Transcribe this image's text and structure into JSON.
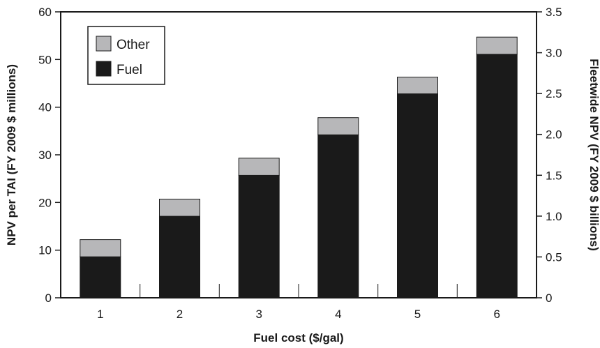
{
  "chart_data": {
    "type": "bar",
    "stacked": true,
    "categories": [
      "1",
      "2",
      "3",
      "4",
      "5",
      "6"
    ],
    "series": [
      {
        "name": "Fuel",
        "color": "#1a1a1a",
        "values": [
          8.6,
          17.1,
          25.7,
          34.2,
          42.8,
          51.1
        ]
      },
      {
        "name": "Other",
        "color": "#b7b7b9",
        "values": [
          3.6,
          3.6,
          3.6,
          3.6,
          3.5,
          3.6
        ]
      }
    ],
    "xlabel": "Fuel cost ($/gal)",
    "ylabel": "NPV per TAI (FY 2009 $ millions)",
    "ylabel_right": "Fleetwide NPV (FY 2009 $ billions)",
    "ylim": [
      0,
      60
    ],
    "yticks": [
      "0",
      "10",
      "20",
      "30",
      "40",
      "50",
      "60"
    ],
    "ylim_right": [
      0,
      3.5
    ],
    "yticks_right": [
      "0",
      "0.5",
      "1.0",
      "1.5",
      "2.0",
      "2.5",
      "3.0",
      "3.5"
    ],
    "legend": {
      "placement": "top-left",
      "entries": [
        "Other",
        "Fuel"
      ]
    },
    "grid": false
  }
}
